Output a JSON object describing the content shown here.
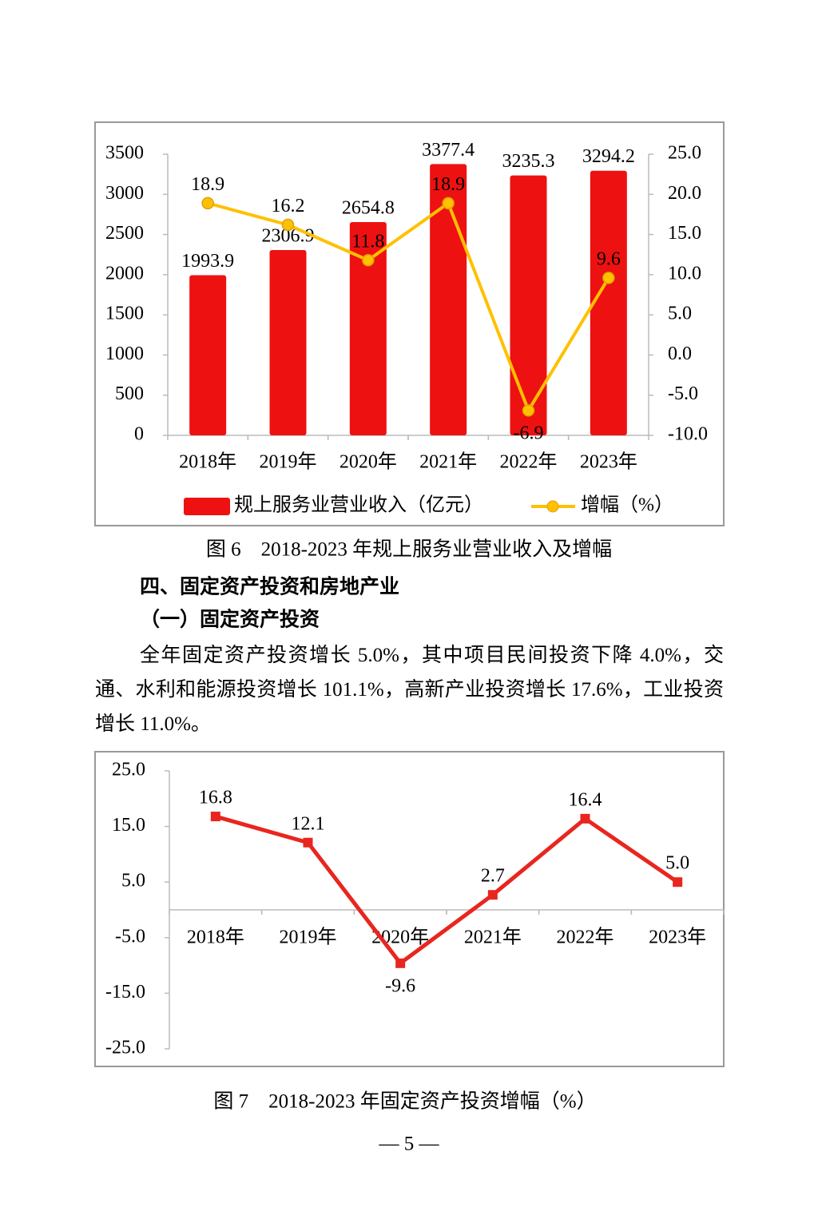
{
  "chart_data": [
    {
      "type": "combo",
      "caption": "图 6　2018-2023 年规上服务业营业收入及增幅",
      "categories": [
        "2018年",
        "2019年",
        "2020年",
        "2021年",
        "2022年",
        "2023年"
      ],
      "series": [
        {
          "name": "规上服务业营业收入（亿元）",
          "type": "bar",
          "color": "#ee1111",
          "label_color": "#e3211b",
          "values": [
            1993.9,
            2306.9,
            2654.8,
            3377.4,
            3235.3,
            3294.2
          ]
        },
        {
          "name": "增幅（%）",
          "type": "line",
          "axis": "y2",
          "color": "#ffc000",
          "label_color": "#000000",
          "values": [
            18.9,
            16.2,
            11.8,
            18.9,
            -6.9,
            9.6
          ]
        }
      ],
      "ylim": [
        0,
        3500
      ],
      "yticks": [
        0,
        500,
        1000,
        1500,
        2000,
        2500,
        3000,
        3500
      ],
      "y2lim": [
        -10,
        25
      ],
      "y2ticks": [
        {
          "value": -10,
          "label": "-10.0"
        },
        {
          "value": -5,
          "label": "-5.0"
        },
        {
          "value": 0,
          "label": "0.0"
        },
        {
          "value": 5,
          "label": "5.0"
        },
        {
          "value": 10,
          "label": "10.0"
        },
        {
          "value": 15,
          "label": "15.0"
        },
        {
          "value": 20,
          "label": "20.0"
        },
        {
          "value": 25,
          "label": "25.0"
        }
      ],
      "grid": false,
      "legend": "bottom"
    },
    {
      "type": "line",
      "caption": "图 7　2018-2023 年固定资产投资增幅（%）",
      "categories": [
        "2018年",
        "2019年",
        "2020年",
        "2021年",
        "2022年",
        "2023年"
      ],
      "values": [
        16.8,
        12.1,
        -9.6,
        2.7,
        16.4,
        5.0
      ],
      "value_labels": [
        "16.8",
        "12.1",
        "-9.6",
        "2.7",
        "16.4",
        "5.0"
      ],
      "color": "#e8261f",
      "label_color": "#e3211b",
      "ylim": [
        -25,
        25
      ],
      "yticks": [
        {
          "value": -25,
          "label": "-25.0"
        },
        {
          "value": -15,
          "label": "-15.0"
        },
        {
          "value": -5,
          "label": "-5.0"
        },
        {
          "value": 5,
          "label": "5.0"
        },
        {
          "value": 15,
          "label": "15.0"
        },
        {
          "value": 25,
          "label": "25.0"
        }
      ],
      "grid": false
    }
  ],
  "document": {
    "heading": "四、固定资产投资和房地产业",
    "subheading": "（一）固定资产投资",
    "paragraph": "全年固定资产投资增长 5.0%，其中项目民间投资下降 4.0%，交通、水利和能源投资增长 101.1%，高新产业投资增长 17.6%，工业投资增长 11.0%。",
    "page_number": "— 5 —"
  }
}
